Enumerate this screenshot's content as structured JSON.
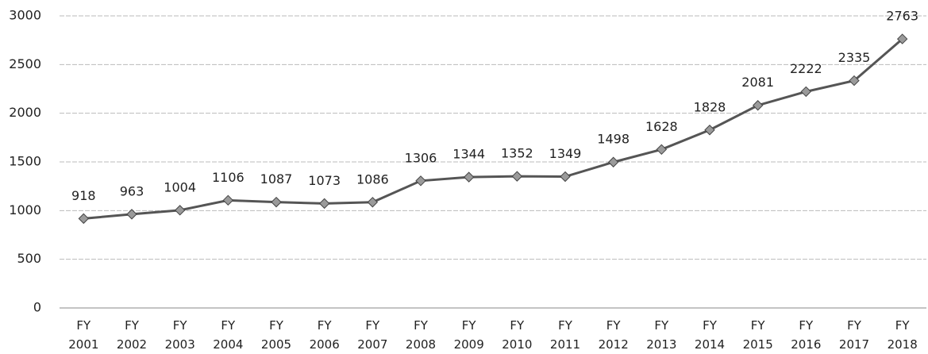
{
  "chart_data": {
    "type": "line",
    "categories": [
      "FY 2001",
      "FY 2002",
      "FY 2003",
      "FY 2004",
      "FY 2005",
      "FY 2006",
      "FY 2007",
      "FY 2008",
      "FY 2009",
      "FY 2010",
      "FY 2011",
      "FY 2012",
      "FY 2013",
      "FY 2014",
      "FY 2015",
      "FY 2016",
      "FY 2017",
      "FY 2018"
    ],
    "values": [
      918,
      963,
      1004,
      1106,
      1087,
      1073,
      1086,
      1306,
      1344,
      1352,
      1349,
      1498,
      1628,
      1828,
      2081,
      2222,
      2335,
      2763
    ],
    "color": "#555555",
    "marker_color": "#9a9a9a",
    "ylim": [
      0,
      3000
    ],
    "yticks": [
      0,
      500,
      1000,
      1500,
      2000,
      2500,
      3000
    ],
    "grid": true
  }
}
